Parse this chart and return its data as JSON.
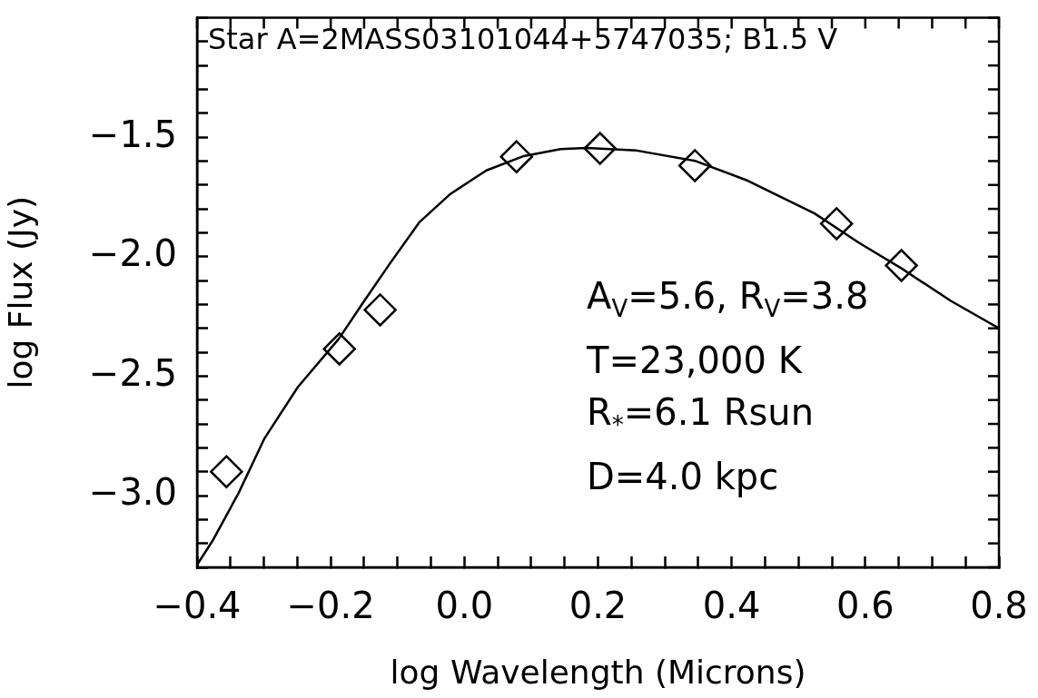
{
  "chart_data": {
    "type": "line",
    "title": "Star A=2MASS03101044+5747035; B1.5 V",
    "xlabel": "log Wavelength (Microns)",
    "ylabel": "log Flux (Jy)",
    "annotations": [
      "A$_{V}$=5.6, R$_{V}$=3.8",
      "T=23,000 K",
      "R$_{*}$=6.1 Rsun",
      "D=4.0 kpc"
    ],
    "xlim": [
      -0.4,
      0.8
    ],
    "ylim": [
      -3.3,
      -1.0
    ],
    "xticks": [
      {
        "value": -0.4,
        "label": "−0.4"
      },
      {
        "value": -0.35,
        "label": null
      },
      {
        "value": -0.3,
        "label": null
      },
      {
        "value": -0.25,
        "label": null
      },
      {
        "value": -0.2,
        "label": "−0.2"
      },
      {
        "value": -0.15,
        "label": null
      },
      {
        "value": -0.1,
        "label": null
      },
      {
        "value": -0.05,
        "label": null
      },
      {
        "value": 0.0,
        "label": "0.0"
      },
      {
        "value": 0.05,
        "label": null
      },
      {
        "value": 0.1,
        "label": null
      },
      {
        "value": 0.15,
        "label": null
      },
      {
        "value": 0.2,
        "label": "0.2"
      },
      {
        "value": 0.25,
        "label": null
      },
      {
        "value": 0.3,
        "label": null
      },
      {
        "value": 0.35,
        "label": null
      },
      {
        "value": 0.4,
        "label": "0.4"
      },
      {
        "value": 0.45,
        "label": null
      },
      {
        "value": 0.5,
        "label": null
      },
      {
        "value": 0.55,
        "label": null
      },
      {
        "value": 0.6,
        "label": "0.6"
      },
      {
        "value": 0.65,
        "label": null
      },
      {
        "value": 0.7,
        "label": null
      },
      {
        "value": 0.75,
        "label": null
      },
      {
        "value": 0.8,
        "label": "0.8"
      }
    ],
    "yticks": [
      {
        "value": -3.3,
        "label": null
      },
      {
        "value": -3.2,
        "label": null
      },
      {
        "value": -3.1,
        "label": null
      },
      {
        "value": -3.0,
        "label": "−3.0"
      },
      {
        "value": -2.9,
        "label": null
      },
      {
        "value": -2.8,
        "label": null
      },
      {
        "value": -2.7,
        "label": null
      },
      {
        "value": -2.6,
        "label": null
      },
      {
        "value": -2.5,
        "label": "−2.5"
      },
      {
        "value": -2.4,
        "label": null
      },
      {
        "value": -2.3,
        "label": null
      },
      {
        "value": -2.2,
        "label": null
      },
      {
        "value": -2.1,
        "label": null
      },
      {
        "value": -2.0,
        "label": "−2.0"
      },
      {
        "value": -1.9,
        "label": null
      },
      {
        "value": -1.8,
        "label": null
      },
      {
        "value": -1.7,
        "label": null
      },
      {
        "value": -1.6,
        "label": null
      },
      {
        "value": -1.5,
        "label": "−1.5"
      },
      {
        "value": -1.4,
        "label": null
      },
      {
        "value": -1.3,
        "label": null
      },
      {
        "value": -1.2,
        "label": null
      },
      {
        "value": -1.1,
        "label": null
      },
      {
        "value": -1.0,
        "label": null
      }
    ],
    "grid": false,
    "legend": false,
    "series": [
      {
        "type": "line",
        "color": "#000000",
        "marker": "none",
        "x": [
          -0.4,
          -0.377,
          -0.338,
          -0.299,
          -0.249,
          -0.188,
          -0.15,
          -0.111,
          -0.067,
          -0.022,
          0.033,
          0.089,
          0.144,
          0.183,
          0.258,
          0.345,
          0.424,
          0.524,
          0.59,
          0.654,
          0.728,
          0.8
        ],
        "values": [
          -3.29,
          -3.19,
          -2.99,
          -2.76,
          -2.545,
          -2.344,
          -2.186,
          -2.027,
          -1.855,
          -1.74,
          -1.639,
          -1.579,
          -1.55,
          -1.545,
          -1.556,
          -1.599,
          -1.682,
          -1.819,
          -1.941,
          -2.049,
          -2.185,
          -2.3
        ]
      },
      {
        "type": "scatter",
        "color": "#000000",
        "marker": "diamond",
        "x": [
          -0.356,
          -0.187,
          -0.126,
          0.078,
          0.203,
          0.345,
          0.557,
          0.654
        ],
        "values": [
          -2.9,
          -2.386,
          -2.223,
          -1.582,
          -1.547,
          -1.619,
          -1.862,
          -2.037
        ]
      }
    ]
  }
}
